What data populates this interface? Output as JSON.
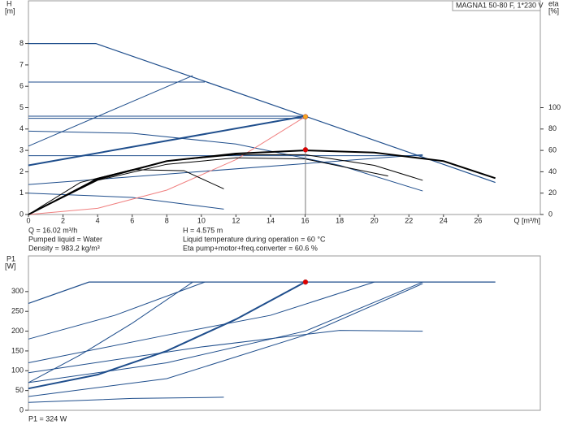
{
  "chart_data": [
    {
      "type": "line",
      "y_label": "H",
      "y_unit": "[m]",
      "y2_label": "eta",
      "y2_unit": "[%]",
      "x_label": "Q [m³/h]",
      "legend_text": "MAGNA1 50-80 F, 1*230 V",
      "annotations": [
        "Q = 16.02 m³/h",
        "H = 4.575 m",
        "Pumped liquid = Water",
        "Liquid temperature during operation = 60 °C",
        "Density = 983.2 kg/m³",
        "Eta pump+motor+freq.converter = 60.6 %"
      ],
      "xlim": [
        0,
        29.6
      ],
      "xticks": [
        0,
        2,
        4,
        6,
        8,
        10,
        12,
        14,
        16,
        18,
        20,
        22,
        24,
        26
      ],
      "ylim": [
        0,
        10
      ],
      "yticks": [
        0,
        1,
        2,
        3,
        4,
        5,
        6,
        7,
        8
      ],
      "y2lim": [
        0,
        200
      ],
      "y2ticks": [
        0,
        20,
        40,
        60,
        80,
        100
      ],
      "series": [
        {
          "color": "#1f4e8c",
          "width": 1.2,
          "x": [
            0,
            3.9,
            16,
            27
          ],
          "values": [
            8,
            8,
            4.6,
            1.5
          ]
        },
        {
          "color": "#1f4e8c",
          "width": 1,
          "x": [
            0,
            10.2
          ],
          "values": [
            6.2,
            6.2
          ]
        },
        {
          "color": "#1f4e8c",
          "width": 1,
          "x": [
            0,
            9.5
          ],
          "values": [
            3.2,
            6.5
          ]
        },
        {
          "color": "#1f4e8c",
          "width": 1,
          "x": [
            0,
            16
          ],
          "values": [
            4.6,
            4.6
          ]
        },
        {
          "color": "#1f4e8c",
          "width": 1,
          "x": [
            0,
            16
          ],
          "values": [
            4.5,
            4.5
          ]
        },
        {
          "color": "#1f4e8c",
          "width": 2,
          "x": [
            0,
            16
          ],
          "values": [
            2.3,
            4.6
          ]
        },
        {
          "color": "#1f4e8c",
          "width": 1,
          "x": [
            0,
            6,
            12,
            18,
            22.8
          ],
          "values": [
            3.9,
            3.8,
            3.3,
            2.3,
            1.1
          ]
        },
        {
          "color": "#1f4e8c",
          "width": 1,
          "x": [
            0,
            22.8
          ],
          "values": [
            2.75,
            2.75
          ]
        },
        {
          "color": "#1f4e8c",
          "width": 1,
          "x": [
            0,
            22.8
          ],
          "values": [
            1.4,
            2.8
          ]
        },
        {
          "color": "#1f4e8c",
          "width": 1,
          "x": [
            0,
            6,
            11.3
          ],
          "values": [
            1,
            0.8,
            0.25
          ]
        },
        {
          "color": "#f08080",
          "width": 1,
          "x": [
            0,
            4,
            8,
            12,
            16
          ],
          "values": [
            0,
            0.29,
            1.14,
            2.57,
            4.575
          ]
        },
        {
          "color": "#000000",
          "width": 2,
          "axis": "y2",
          "x": [
            0,
            4,
            8,
            12,
            16,
            20,
            24,
            27
          ],
          "values": [
            0,
            33,
            50,
            57,
            60,
            58,
            50,
            34
          ]
        },
        {
          "color": "#000000",
          "width": 1,
          "axis": "y2",
          "x": [
            0,
            4,
            8,
            12,
            16,
            20,
            22.8
          ],
          "values": [
            0,
            34,
            50,
            56,
            56,
            46,
            32
          ]
        },
        {
          "color": "#000000",
          "width": 1,
          "axis": "y2",
          "x": [
            0,
            3,
            6,
            9,
            11.3
          ],
          "values": [
            0,
            30,
            42,
            41,
            24
          ]
        },
        {
          "color": "#000000",
          "width": 1,
          "axis": "y2",
          "x": [
            0,
            4,
            8,
            12,
            16,
            20.8
          ],
          "values": [
            0,
            32,
            47,
            53,
            52,
            36
          ]
        }
      ],
      "points": [
        {
          "color": "#f5a623",
          "x": 16.02,
          "value": 4.575
        },
        {
          "color": "#e00000",
          "axis": "y2",
          "x": 16.02,
          "value": 60.6
        }
      ]
    },
    {
      "type": "line",
      "y_label": "P1",
      "y_unit": "[W]",
      "annotations": [
        "P1 = 324 W"
      ],
      "xlim": [
        0,
        29.6
      ],
      "ylim": [
        0,
        390
      ],
      "yticks": [
        0,
        50,
        100,
        150,
        200,
        250,
        300
      ],
      "series": [
        {
          "color": "#1f4e8c",
          "width": 1.2,
          "x": [
            0,
            3.5,
            27
          ],
          "values": [
            270,
            324,
            324
          ]
        },
        {
          "color": "#1f4e8c",
          "width": 1,
          "x": [
            0,
            5,
            10.2
          ],
          "values": [
            180,
            240,
            324
          ]
        },
        {
          "color": "#1f4e8c",
          "width": 1,
          "x": [
            0,
            3,
            6,
            9.5
          ],
          "values": [
            70,
            140,
            220,
            324
          ]
        },
        {
          "color": "#1f4e8c",
          "width": 2,
          "x": [
            0,
            4,
            8,
            12,
            16
          ],
          "values": [
            55,
            90,
            150,
            230,
            324
          ]
        },
        {
          "color": "#1f4e8c",
          "width": 1,
          "x": [
            0,
            8,
            14,
            20
          ],
          "values": [
            120,
            190,
            240,
            324
          ]
        },
        {
          "color": "#1f4e8c",
          "width": 1,
          "x": [
            0,
            8,
            16,
            22.8
          ],
          "values": [
            70,
            120,
            200,
            324
          ]
        },
        {
          "color": "#1f4e8c",
          "width": 1,
          "x": [
            0,
            8,
            16,
            22.8
          ],
          "values": [
            35,
            80,
            190,
            320
          ]
        },
        {
          "color": "#1f4e8c",
          "width": 1,
          "x": [
            0,
            10,
            18,
            22.8
          ],
          "values": [
            95,
            160,
            202,
            200
          ]
        },
        {
          "color": "#1f4e8c",
          "width": 1,
          "x": [
            0,
            6,
            11.3
          ],
          "values": [
            20,
            30,
            33
          ]
        }
      ],
      "points": [
        {
          "color": "#e00000",
          "x": 16.02,
          "value": 324
        }
      ]
    }
  ]
}
